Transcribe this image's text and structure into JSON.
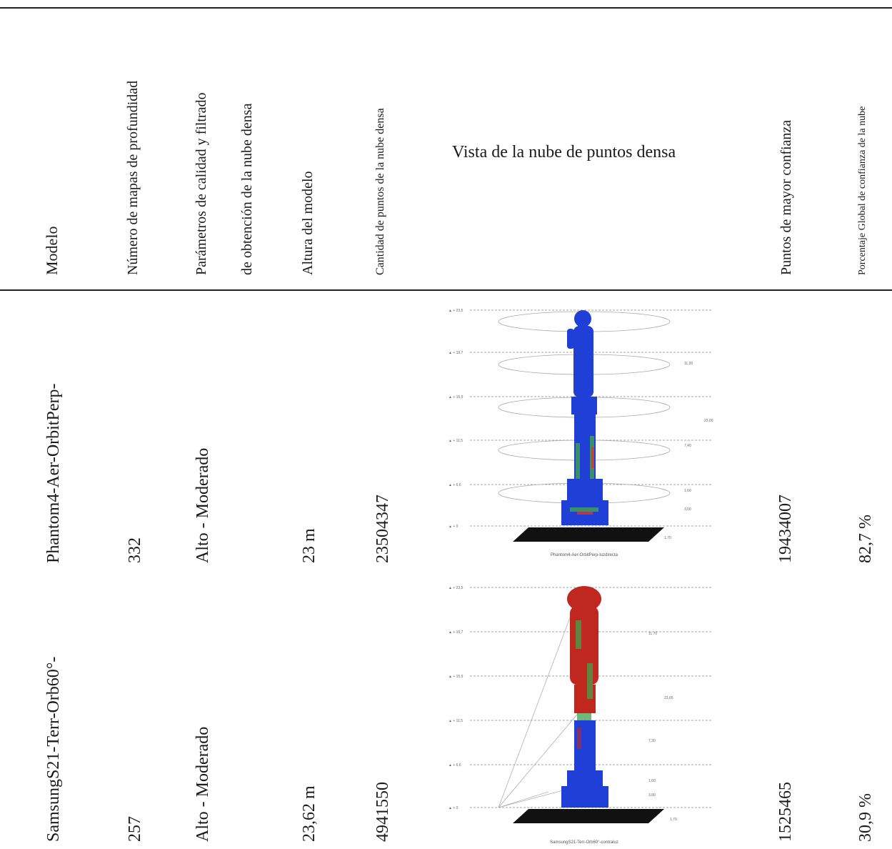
{
  "headers": {
    "modelo": "Modelo",
    "mapas": "Número de mapas de profundidad",
    "parametros_1": "Parámetros de calidad y filtrado",
    "parametros_2": "de obtención de la nube densa",
    "altura": "Altura del modelo",
    "cantidad": "Cantidad de puntos de la nube densa",
    "vista": "Vista de la nube de puntos densa",
    "puntos": "Puntos de mayor confianza",
    "porcentaje": "Porcentaje Global de confianza de la nube"
  },
  "rows": [
    {
      "modelo": "Phantom4-Aer-OrbitPerp-",
      "mapas": "332",
      "parametros": "Alto - Moderado",
      "altura": "23 m",
      "cantidad": "23504347",
      "puntos": "19434007",
      "porcentaje": "82,7 %",
      "figure": {
        "caption": "Phantom4-Aer-OrbitPerp-luzdirecta",
        "levels": [
          "+ 23,5",
          "+ 19,7",
          "+ 15,9",
          "+ 11,5",
          "+ 6,6",
          "+ 0"
        ],
        "dims": [
          "11,00",
          "23,00",
          "7,40",
          "1,60",
          "3,00",
          "1,70"
        ],
        "dominant_color": "#1f3fd6",
        "accent_colors": [
          "#3fa34d",
          "#d93a2b"
        ]
      }
    },
    {
      "modelo": "SamsungS21-Terr-Orb60°-",
      "mapas": "257",
      "parametros": "Alto - Moderado",
      "altura": "23,62 m",
      "cantidad": "4941550",
      "puntos": "1525465",
      "porcentaje": "30,9 %",
      "figure": {
        "caption": "SamsungS21-Terr-Orb60°-contraluz",
        "levels": [
          "+ 23,5",
          "+ 19,7",
          "+ 15,9",
          "+ 11,5",
          "+ 6,6",
          "+ 0"
        ],
        "dims": [
          "11,70",
          "23,65",
          "7,30",
          "1,60",
          "3,00",
          "1,70"
        ],
        "dominant_color": "#c0271e",
        "accent_colors": [
          "#1f3fd6",
          "#3fa34d"
        ]
      }
    }
  ]
}
